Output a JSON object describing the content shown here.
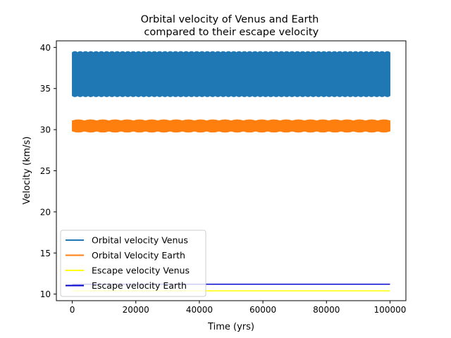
{
  "chart_data": {
    "type": "line",
    "title_lines": [
      "Orbital velocity of Venus and Earth",
      " compared to their escape velocity"
    ],
    "xlabel": "Time (yrs)",
    "ylabel": "Velocity (km/s)",
    "xlim": [
      -5000,
      105000
    ],
    "ylim": [
      9.2,
      40.8
    ],
    "xticks": [
      0,
      20000,
      40000,
      60000,
      80000,
      100000
    ],
    "xtick_labels": [
      "0",
      "20000",
      "40000",
      "60000",
      "80000",
      "100000"
    ],
    "yticks": [
      10,
      15,
      20,
      25,
      30,
      35,
      40
    ],
    "ytick_labels": [
      "10",
      "15",
      "20",
      "25",
      "30",
      "35",
      "40"
    ],
    "grid": false,
    "legend_position": "lower-left",
    "series": [
      {
        "name": "Orbital velocity Venus",
        "color": "#1f77b4",
        "kind": "band",
        "x_range": [
          0,
          100000
        ],
        "min": 34.0,
        "max": 39.5,
        "periods": 60
      },
      {
        "name": "Orbital Velocity Earth",
        "color": "#ff7f0e",
        "kind": "band",
        "x_range": [
          0,
          100000
        ],
        "min": 29.7,
        "max": 31.2,
        "periods": 26
      },
      {
        "name": "Escape velocity Venus",
        "color": "#ffff00",
        "kind": "constant",
        "x_range": [
          0,
          100000
        ],
        "value": 10.4
      },
      {
        "name": "Escape velocity Earth",
        "color": "#0000cd",
        "kind": "constant",
        "x_range": [
          0,
          100000
        ],
        "value": 11.2
      }
    ]
  }
}
